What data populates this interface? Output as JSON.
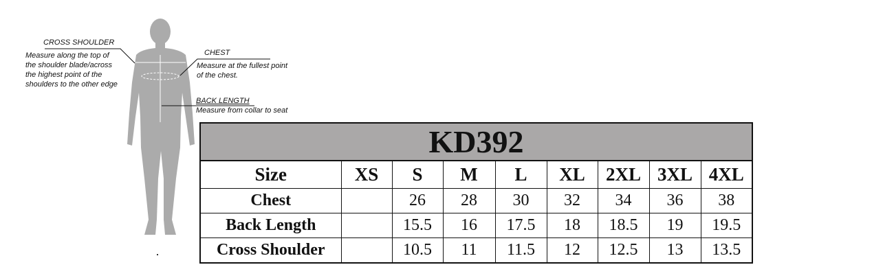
{
  "figure": {
    "cross_shoulder": {
      "title": "CROSS SHOULDER",
      "lines": [
        "Measure along the top of",
        "the shoulder blade/across",
        "the highest point of the",
        "shoulders to the other edge"
      ]
    },
    "chest": {
      "title": "CHEST",
      "lines": [
        "Measure at the fullest point",
        "of the chest."
      ]
    },
    "back_length": {
      "title": "BACK LENGTH",
      "lines": [
        "Measure from collar to seat"
      ]
    },
    "silhouette_color": "#aaaaaa"
  },
  "table": {
    "title": "KD392",
    "title_bg": "#aaa8a8",
    "header": [
      "Size",
      "XS",
      "S",
      "M",
      "L",
      "XL",
      "2XL",
      "3XL",
      "4XL"
    ],
    "rows": [
      {
        "label": "Chest",
        "values": [
          "",
          "26",
          "28",
          "30",
          "32",
          "34",
          "36",
          "38"
        ]
      },
      {
        "label": "Back Length",
        "values": [
          "",
          "15.5",
          "16",
          "17.5",
          "18",
          "18.5",
          "19",
          "19.5"
        ]
      },
      {
        "label": "Cross Shoulder",
        "values": [
          "",
          "10.5",
          "11",
          "11.5",
          "12",
          "12.5",
          "13",
          "13.5"
        ]
      }
    ]
  }
}
